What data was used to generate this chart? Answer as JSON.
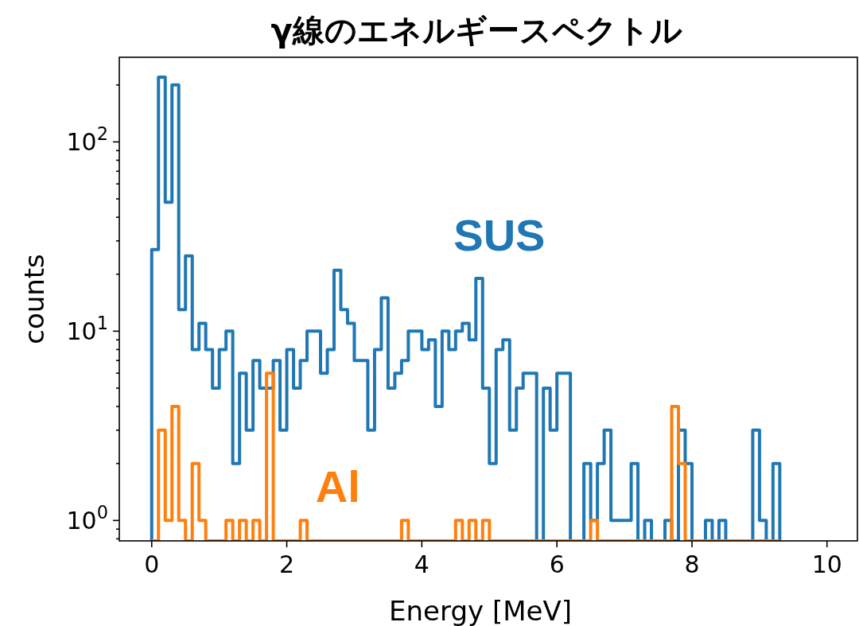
{
  "chart_data": {
    "type": "histogram",
    "title": "γ線のエネルギースペクトル",
    "xlabel": "Energy [MeV]",
    "ylabel": "counts",
    "bins": [
      0,
      0.1,
      0.2,
      0.3,
      0.4,
      0.5,
      0.6,
      0.7,
      0.8,
      0.9,
      1,
      1.1,
      1.2,
      1.3,
      1.4,
      1.5,
      1.6,
      1.7,
      1.8,
      1.9,
      2,
      2.1,
      2.2,
      2.3,
      2.4,
      2.5,
      2.6,
      2.7,
      2.8,
      2.9,
      3,
      3.1,
      3.2,
      3.3,
      3.4,
      3.5,
      3.6,
      3.7,
      3.8,
      3.9,
      4,
      4.1,
      4.2,
      4.3,
      4.4,
      4.5,
      4.6,
      4.7,
      4.8,
      4.9,
      5,
      5.1,
      5.2,
      5.3,
      5.4,
      5.5,
      5.6,
      5.7,
      5.8,
      5.9,
      6,
      6.1,
      6.2,
      6.3,
      6.4,
      6.5,
      6.6,
      6.7,
      6.8,
      6.9,
      7,
      7.1,
      7.2,
      7.3,
      7.4,
      7.5,
      7.6,
      7.7,
      7.8,
      7.9,
      8,
      8.1,
      8.2,
      8.3,
      8.4,
      8.5,
      8.6,
      8.7,
      8.8,
      8.9,
      9,
      9.1,
      9.2,
      9.3
    ],
    "series": [
      {
        "name": "SUS",
        "color": "#1f77b4",
        "values": [
          27,
          220,
          48,
          200,
          13,
          25,
          8,
          11,
          8,
          5,
          8,
          10,
          2,
          6,
          3,
          7,
          5,
          5,
          7,
          3,
          8,
          5,
          7,
          10,
          10,
          6,
          8,
          21,
          13,
          11,
          7,
          7,
          3,
          8,
          15,
          5,
          6,
          7,
          10,
          10,
          8,
          9,
          4,
          10,
          8,
          10,
          11,
          9,
          19,
          5,
          2,
          8,
          9,
          3,
          5,
          6,
          6,
          null,
          5,
          3,
          6,
          6,
          null,
          null,
          2,
          1,
          2,
          3,
          1,
          1,
          1,
          2,
          null,
          1,
          null,
          null,
          1,
          null,
          3,
          2,
          null,
          null,
          1,
          null,
          1,
          null,
          null,
          null,
          null,
          3,
          1,
          null,
          2
        ]
      },
      {
        "name": "Al",
        "color": "#ff7f0e",
        "values": [
          null,
          3,
          1,
          4,
          1,
          null,
          2,
          1,
          null,
          null,
          null,
          1,
          null,
          1,
          null,
          1,
          null,
          6,
          null,
          null,
          null,
          null,
          1,
          null,
          null,
          null,
          null,
          null,
          null,
          null,
          null,
          null,
          null,
          null,
          null,
          null,
          null,
          1,
          null,
          null,
          null,
          null,
          null,
          null,
          null,
          1,
          null,
          1,
          null,
          1,
          null,
          null,
          null,
          null,
          null,
          null,
          null,
          null,
          null,
          null,
          null,
          null,
          null,
          null,
          null,
          1,
          null,
          null,
          null,
          null,
          null,
          null,
          null,
          null,
          null,
          null,
          null,
          4,
          2,
          null,
          null,
          null,
          null,
          null,
          null,
          null,
          null,
          null,
          null,
          null,
          null,
          null,
          null
        ]
      }
    ],
    "xlim": [
      -0.48,
      10.45
    ],
    "ylim": [
      0.78,
      280
    ],
    "log": "y",
    "xticks": [
      0,
      2,
      4,
      6,
      8,
      10
    ],
    "yticks": [
      {
        "value": 0.8,
        "label": null
      },
      {
        "value": 0.9,
        "label": null
      },
      {
        "value": 1,
        "label": "10$^{0}$"
      },
      {
        "value": 2,
        "label": null
      },
      {
        "value": 3,
        "label": null
      },
      {
        "value": 4,
        "label": null
      },
      {
        "value": 5,
        "label": null
      },
      {
        "value": 6,
        "label": null
      },
      {
        "value": 7,
        "label": null
      },
      {
        "value": 8,
        "label": null
      },
      {
        "value": 9,
        "label": null
      },
      {
        "value": 10,
        "label": "10$^{1}$"
      },
      {
        "value": 20,
        "label": null
      },
      {
        "value": 30,
        "label": null
      },
      {
        "value": 40,
        "label": null
      },
      {
        "value": 50,
        "label": null
      },
      {
        "value": 60,
        "label": null
      },
      {
        "value": 70,
        "label": null
      },
      {
        "value": 80,
        "label": null
      },
      {
        "value": 90,
        "label": null
      },
      {
        "value": 100,
        "label": "10$^{2}$"
      },
      {
        "value": 200,
        "label": null
      }
    ],
    "grid": false
  }
}
